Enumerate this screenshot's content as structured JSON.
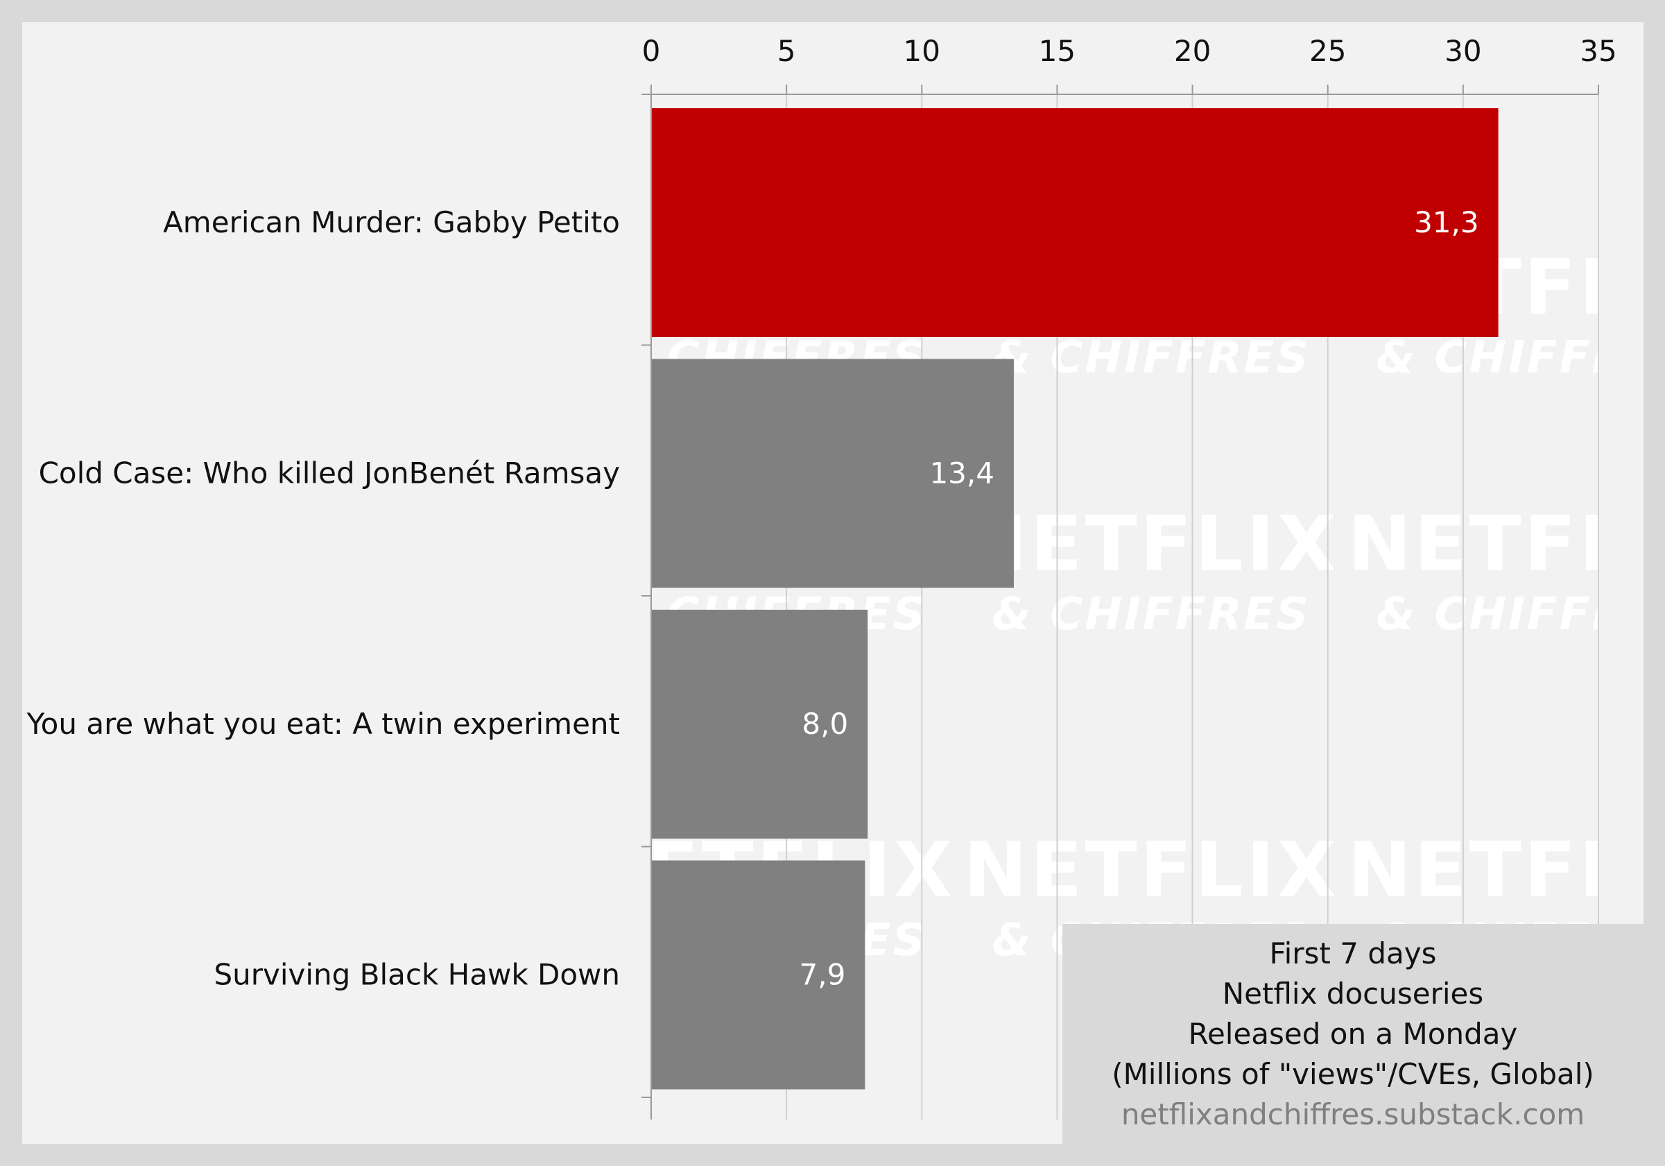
{
  "chart_data": {
    "type": "bar",
    "orientation": "horizontal",
    "x_axis_position": "top",
    "categories": [
      "American Murder: Gabby Petito",
      "Cold Case: Who killed JonBenét Ramsay",
      "You are what you eat: A twin experiment",
      "Surviving Black Hawk Down"
    ],
    "values": [
      31.3,
      13.4,
      8.0,
      7.9
    ],
    "value_labels": [
      "31,3",
      "13,4",
      "8,0",
      "7,9"
    ],
    "bar_colors": [
      "#c00000",
      "#808080",
      "#808080",
      "#808080"
    ],
    "xlim": [
      0,
      35
    ],
    "xticks": [
      0,
      5,
      10,
      15,
      20,
      25,
      30,
      35
    ],
    "xtick_labels": [
      "0",
      "5",
      "10",
      "15",
      "20",
      "25",
      "30",
      "35"
    ],
    "grid": "vertical",
    "legend_placement": "bottom-right"
  },
  "legend_box": {
    "lines": [
      "First 7 days",
      "Netflix docuseries",
      "Released on a Monday",
      "(Millions of \"views\"/CVEs, Global)"
    ],
    "source": "netflixandchiffres.substack.com"
  },
  "watermark": {
    "line1": "NETFLIX",
    "line2": "& CHIFFRES"
  },
  "colors": {
    "background": "#f2f2f2",
    "border": "#d9d9d9",
    "highlight_bar": "#c00000",
    "default_bar": "#808080",
    "gridline": "#d0d0d0"
  }
}
